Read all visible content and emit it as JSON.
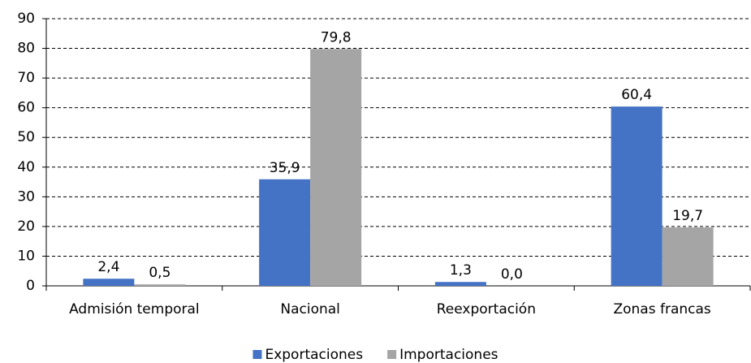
{
  "chart_data": {
    "type": "bar",
    "categories": [
      "Admisión temporal",
      "Nacional",
      "Reexportación",
      "Zonas francas"
    ],
    "series": [
      {
        "name": "Exportaciones",
        "color": "#4472c4",
        "values": [
          2.4,
          35.9,
          1.3,
          60.4
        ],
        "value_labels": [
          "2,4",
          "35,9",
          "1,3",
          "60,4"
        ]
      },
      {
        "name": "Importaciones",
        "color": "#a5a5a5",
        "values": [
          0.5,
          79.8,
          0.0,
          19.7
        ],
        "value_labels": [
          "0,5",
          "79,8",
          "0,0",
          "19,7"
        ]
      }
    ],
    "ylim": [
      0,
      90
    ],
    "yticks": [
      0,
      10,
      20,
      30,
      40,
      50,
      60,
      70,
      80,
      90
    ],
    "grid": true,
    "legend": "bottom"
  }
}
